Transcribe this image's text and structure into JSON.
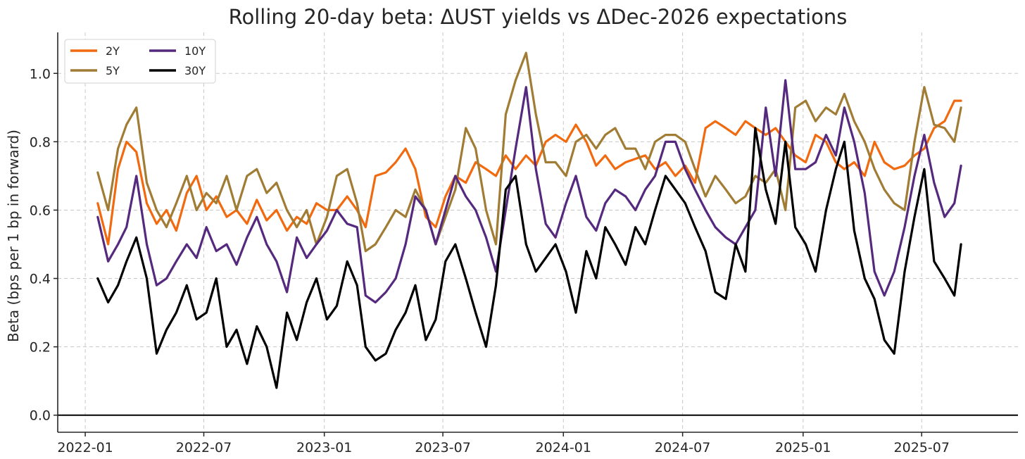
{
  "chart_data": {
    "type": "line",
    "title": "Rolling 20-day beta: ΔUST yields vs ΔDec-2026 expectations",
    "xlabel": "",
    "ylabel": "Beta (bps per 1 bp in forward)",
    "xlim": [
      "2021-11-20",
      "2025-11-25"
    ],
    "ylim": [
      -0.05,
      1.12
    ],
    "x_ticks": [
      "2022-01",
      "2022-07",
      "2023-01",
      "2023-07",
      "2024-01",
      "2024-07",
      "2025-01",
      "2025-07"
    ],
    "y_ticks": [
      "0.0",
      "0.2",
      "0.4",
      "0.6",
      "0.8",
      "1.0"
    ],
    "y_tick_values": [
      0.0,
      0.2,
      0.4,
      0.6,
      0.8,
      1.0
    ],
    "zero_line": 0.0,
    "grid": true,
    "legend_position": "top-left",
    "series": [
      {
        "name": "2Y",
        "color": "#f16a0f",
        "x": [
          "2022-01-20",
          "2022-02-05",
          "2022-02-20",
          "2022-03-05",
          "2022-03-20",
          "2022-04-05",
          "2022-04-20",
          "2022-05-05",
          "2022-05-20",
          "2022-06-05",
          "2022-06-20",
          "2022-07-05",
          "2022-07-20",
          "2022-08-05",
          "2022-08-20",
          "2022-09-05",
          "2022-09-20",
          "2022-10-05",
          "2022-10-20",
          "2022-11-05",
          "2022-11-20",
          "2022-12-05",
          "2022-12-20",
          "2023-01-05",
          "2023-01-20",
          "2023-02-05",
          "2023-02-20",
          "2023-03-05",
          "2023-03-20",
          "2023-04-05",
          "2023-04-20",
          "2023-05-05",
          "2023-05-20",
          "2023-06-05",
          "2023-06-20",
          "2023-07-05",
          "2023-07-20",
          "2023-08-05",
          "2023-08-20",
          "2023-09-05",
          "2023-09-20",
          "2023-10-05",
          "2023-10-20",
          "2023-11-05",
          "2023-11-20",
          "2023-12-05",
          "2023-12-20",
          "2024-01-05",
          "2024-01-20",
          "2024-02-05",
          "2024-02-20",
          "2024-03-05",
          "2024-03-20",
          "2024-04-05",
          "2024-04-20",
          "2024-05-05",
          "2024-05-20",
          "2024-06-05",
          "2024-06-20",
          "2024-07-05",
          "2024-07-20",
          "2024-08-05",
          "2024-08-20",
          "2024-09-05",
          "2024-09-20",
          "2024-10-05",
          "2024-10-20",
          "2024-11-05",
          "2024-11-20",
          "2024-12-05",
          "2024-12-20",
          "2025-01-05",
          "2025-01-20",
          "2025-02-05",
          "2025-02-20",
          "2025-03-05",
          "2025-03-20",
          "2025-04-05",
          "2025-04-20",
          "2025-05-05",
          "2025-05-20",
          "2025-06-05",
          "2025-06-20",
          "2025-07-05",
          "2025-07-20",
          "2025-08-05",
          "2025-08-20",
          "2025-08-30"
        ],
        "values": [
          0.62,
          0.5,
          0.72,
          0.8,
          0.77,
          0.62,
          0.56,
          0.6,
          0.54,
          0.65,
          0.7,
          0.6,
          0.64,
          0.58,
          0.6,
          0.56,
          0.63,
          0.57,
          0.6,
          0.54,
          0.58,
          0.56,
          0.62,
          0.6,
          0.6,
          0.64,
          0.6,
          0.55,
          0.7,
          0.71,
          0.74,
          0.78,
          0.72,
          0.58,
          0.55,
          0.64,
          0.7,
          0.68,
          0.74,
          0.72,
          0.7,
          0.76,
          0.72,
          0.76,
          0.73,
          0.8,
          0.82,
          0.8,
          0.85,
          0.8,
          0.73,
          0.76,
          0.72,
          0.74,
          0.75,
          0.76,
          0.72,
          0.74,
          0.7,
          0.73,
          0.68,
          0.84,
          0.86,
          0.84,
          0.82,
          0.86,
          0.84,
          0.82,
          0.84,
          0.8,
          0.76,
          0.74,
          0.82,
          0.8,
          0.74,
          0.72,
          0.74,
          0.7,
          0.8,
          0.74,
          0.72,
          0.73,
          0.76,
          0.78,
          0.84,
          0.86,
          0.92,
          0.92
        ]
      },
      {
        "name": "5Y",
        "color": "#a07c35",
        "x": [
          "2022-01-20",
          "2022-02-05",
          "2022-02-20",
          "2022-03-05",
          "2022-03-20",
          "2022-04-05",
          "2022-04-20",
          "2022-05-05",
          "2022-05-20",
          "2022-06-05",
          "2022-06-20",
          "2022-07-05",
          "2022-07-20",
          "2022-08-05",
          "2022-08-20",
          "2022-09-05",
          "2022-09-20",
          "2022-10-05",
          "2022-10-20",
          "2022-11-05",
          "2022-11-20",
          "2022-12-05",
          "2022-12-20",
          "2023-01-05",
          "2023-01-20",
          "2023-02-05",
          "2023-02-20",
          "2023-03-05",
          "2023-03-20",
          "2023-04-05",
          "2023-04-20",
          "2023-05-05",
          "2023-05-20",
          "2023-06-05",
          "2023-06-20",
          "2023-07-05",
          "2023-07-20",
          "2023-08-05",
          "2023-08-20",
          "2023-09-05",
          "2023-09-20",
          "2023-10-05",
          "2023-10-20",
          "2023-11-05",
          "2023-11-20",
          "2023-12-05",
          "2023-12-20",
          "2024-01-05",
          "2024-01-20",
          "2024-02-05",
          "2024-02-20",
          "2024-03-05",
          "2024-03-20",
          "2024-04-05",
          "2024-04-20",
          "2024-05-05",
          "2024-05-20",
          "2024-06-05",
          "2024-06-20",
          "2024-07-05",
          "2024-07-20",
          "2024-08-05",
          "2024-08-20",
          "2024-09-05",
          "2024-09-20",
          "2024-10-05",
          "2024-10-20",
          "2024-11-05",
          "2024-11-20",
          "2024-12-05",
          "2024-12-20",
          "2025-01-05",
          "2025-01-20",
          "2025-02-05",
          "2025-02-20",
          "2025-03-05",
          "2025-03-20",
          "2025-04-05",
          "2025-04-20",
          "2025-05-05",
          "2025-05-20",
          "2025-06-05",
          "2025-06-20",
          "2025-07-05",
          "2025-07-20",
          "2025-08-05",
          "2025-08-20",
          "2025-08-30"
        ],
        "values": [
          0.71,
          0.6,
          0.78,
          0.85,
          0.9,
          0.68,
          0.6,
          0.55,
          0.62,
          0.7,
          0.6,
          0.65,
          0.62,
          0.7,
          0.6,
          0.7,
          0.72,
          0.65,
          0.68,
          0.6,
          0.55,
          0.6,
          0.5,
          0.58,
          0.7,
          0.72,
          0.62,
          0.48,
          0.5,
          0.55,
          0.6,
          0.58,
          0.66,
          0.6,
          0.5,
          0.58,
          0.66,
          0.84,
          0.78,
          0.6,
          0.5,
          0.88,
          0.98,
          1.06,
          0.88,
          0.74,
          0.74,
          0.7,
          0.8,
          0.82,
          0.78,
          0.82,
          0.84,
          0.78,
          0.78,
          0.72,
          0.8,
          0.82,
          0.82,
          0.8,
          0.72,
          0.64,
          0.7,
          0.66,
          0.62,
          0.64,
          0.7,
          0.68,
          0.72,
          0.6,
          0.9,
          0.92,
          0.86,
          0.9,
          0.88,
          0.94,
          0.86,
          0.8,
          0.72,
          0.66,
          0.62,
          0.6,
          0.8,
          0.96,
          0.85,
          0.84,
          0.8,
          0.9
        ]
      },
      {
        "name": "10Y",
        "color": "#55297e",
        "x": [
          "2022-01-20",
          "2022-02-05",
          "2022-02-20",
          "2022-03-05",
          "2022-03-20",
          "2022-04-05",
          "2022-04-20",
          "2022-05-05",
          "2022-05-20",
          "2022-06-05",
          "2022-06-20",
          "2022-07-05",
          "2022-07-20",
          "2022-08-05",
          "2022-08-20",
          "2022-09-05",
          "2022-09-20",
          "2022-10-05",
          "2022-10-20",
          "2022-11-05",
          "2022-11-20",
          "2022-12-05",
          "2022-12-20",
          "2023-01-05",
          "2023-01-20",
          "2023-02-05",
          "2023-02-20",
          "2023-03-05",
          "2023-03-20",
          "2023-04-05",
          "2023-04-20",
          "2023-05-05",
          "2023-05-20",
          "2023-06-05",
          "2023-06-20",
          "2023-07-05",
          "2023-07-20",
          "2023-08-05",
          "2023-08-20",
          "2023-09-05",
          "2023-09-20",
          "2023-10-05",
          "2023-10-20",
          "2023-11-05",
          "2023-11-20",
          "2023-12-05",
          "2023-12-20",
          "2024-01-05",
          "2024-01-20",
          "2024-02-05",
          "2024-02-20",
          "2024-03-05",
          "2024-03-20",
          "2024-04-05",
          "2024-04-20",
          "2024-05-05",
          "2024-05-20",
          "2024-06-05",
          "2024-06-20",
          "2024-07-05",
          "2024-07-20",
          "2024-08-05",
          "2024-08-20",
          "2024-09-05",
          "2024-09-20",
          "2024-10-05",
          "2024-10-20",
          "2024-11-05",
          "2024-11-20",
          "2024-12-05",
          "2024-12-20",
          "2025-01-05",
          "2025-01-20",
          "2025-02-05",
          "2025-02-20",
          "2025-03-05",
          "2025-03-20",
          "2025-04-05",
          "2025-04-20",
          "2025-05-05",
          "2025-05-20",
          "2025-06-05",
          "2025-06-20",
          "2025-07-05",
          "2025-07-20",
          "2025-08-05",
          "2025-08-20",
          "2025-08-30"
        ],
        "values": [
          0.58,
          0.45,
          0.5,
          0.55,
          0.7,
          0.5,
          0.38,
          0.4,
          0.45,
          0.5,
          0.46,
          0.55,
          0.48,
          0.5,
          0.44,
          0.52,
          0.58,
          0.5,
          0.45,
          0.36,
          0.52,
          0.46,
          0.5,
          0.54,
          0.6,
          0.56,
          0.55,
          0.35,
          0.33,
          0.36,
          0.4,
          0.5,
          0.64,
          0.6,
          0.5,
          0.6,
          0.7,
          0.64,
          0.6,
          0.52,
          0.42,
          0.6,
          0.78,
          0.96,
          0.72,
          0.56,
          0.52,
          0.62,
          0.7,
          0.58,
          0.54,
          0.62,
          0.66,
          0.64,
          0.6,
          0.66,
          0.7,
          0.8,
          0.8,
          0.72,
          0.66,
          0.6,
          0.55,
          0.52,
          0.5,
          0.55,
          0.6,
          0.9,
          0.7,
          0.98,
          0.72,
          0.72,
          0.74,
          0.82,
          0.76,
          0.9,
          0.8,
          0.65,
          0.42,
          0.35,
          0.42,
          0.55,
          0.7,
          0.82,
          0.68,
          0.58,
          0.62,
          0.73
        ]
      },
      {
        "name": "30Y",
        "color": "#000000",
        "x": [
          "2022-01-20",
          "2022-02-05",
          "2022-02-20",
          "2022-03-05",
          "2022-03-20",
          "2022-04-05",
          "2022-04-20",
          "2022-05-05",
          "2022-05-20",
          "2022-06-05",
          "2022-06-20",
          "2022-07-05",
          "2022-07-20",
          "2022-08-05",
          "2022-08-20",
          "2022-09-05",
          "2022-09-20",
          "2022-10-05",
          "2022-10-20",
          "2022-11-05",
          "2022-11-20",
          "2022-12-05",
          "2022-12-20",
          "2023-01-05",
          "2023-01-20",
          "2023-02-05",
          "2023-02-20",
          "2023-03-05",
          "2023-03-20",
          "2023-04-05",
          "2023-04-20",
          "2023-05-05",
          "2023-05-20",
          "2023-06-05",
          "2023-06-20",
          "2023-07-05",
          "2023-07-20",
          "2023-08-05",
          "2023-08-20",
          "2023-09-05",
          "2023-09-20",
          "2023-10-05",
          "2023-10-20",
          "2023-11-05",
          "2023-11-20",
          "2023-12-05",
          "2023-12-20",
          "2024-01-05",
          "2024-01-20",
          "2024-02-05",
          "2024-02-20",
          "2024-03-05",
          "2024-03-20",
          "2024-04-05",
          "2024-04-20",
          "2024-05-05",
          "2024-05-20",
          "2024-06-05",
          "2024-06-20",
          "2024-07-05",
          "2024-07-20",
          "2024-08-05",
          "2024-08-20",
          "2024-09-05",
          "2024-09-20",
          "2024-10-05",
          "2024-10-20",
          "2024-11-05",
          "2024-11-20",
          "2024-12-05",
          "2024-12-20",
          "2025-01-05",
          "2025-01-20",
          "2025-02-05",
          "2025-02-20",
          "2025-03-05",
          "2025-03-20",
          "2025-04-05",
          "2025-04-20",
          "2025-05-05",
          "2025-05-20",
          "2025-06-05",
          "2025-06-20",
          "2025-07-05",
          "2025-07-20",
          "2025-08-05",
          "2025-08-20",
          "2025-08-30"
        ],
        "values": [
          0.4,
          0.33,
          0.38,
          0.45,
          0.52,
          0.4,
          0.18,
          0.25,
          0.3,
          0.38,
          0.28,
          0.3,
          0.4,
          0.2,
          0.25,
          0.15,
          0.26,
          0.2,
          0.08,
          0.3,
          0.22,
          0.33,
          0.4,
          0.28,
          0.32,
          0.45,
          0.38,
          0.2,
          0.16,
          0.18,
          0.25,
          0.3,
          0.38,
          0.22,
          0.28,
          0.45,
          0.5,
          0.4,
          0.3,
          0.2,
          0.38,
          0.66,
          0.7,
          0.5,
          0.42,
          0.46,
          0.5,
          0.42,
          0.3,
          0.48,
          0.4,
          0.55,
          0.5,
          0.44,
          0.55,
          0.5,
          0.6,
          0.7,
          0.66,
          0.62,
          0.55,
          0.48,
          0.36,
          0.34,
          0.5,
          0.42,
          0.84,
          0.66,
          0.56,
          0.8,
          0.55,
          0.5,
          0.42,
          0.6,
          0.72,
          0.8,
          0.54,
          0.4,
          0.34,
          0.22,
          0.18,
          0.42,
          0.58,
          0.72,
          0.45,
          0.4,
          0.35,
          0.5
        ]
      }
    ]
  }
}
